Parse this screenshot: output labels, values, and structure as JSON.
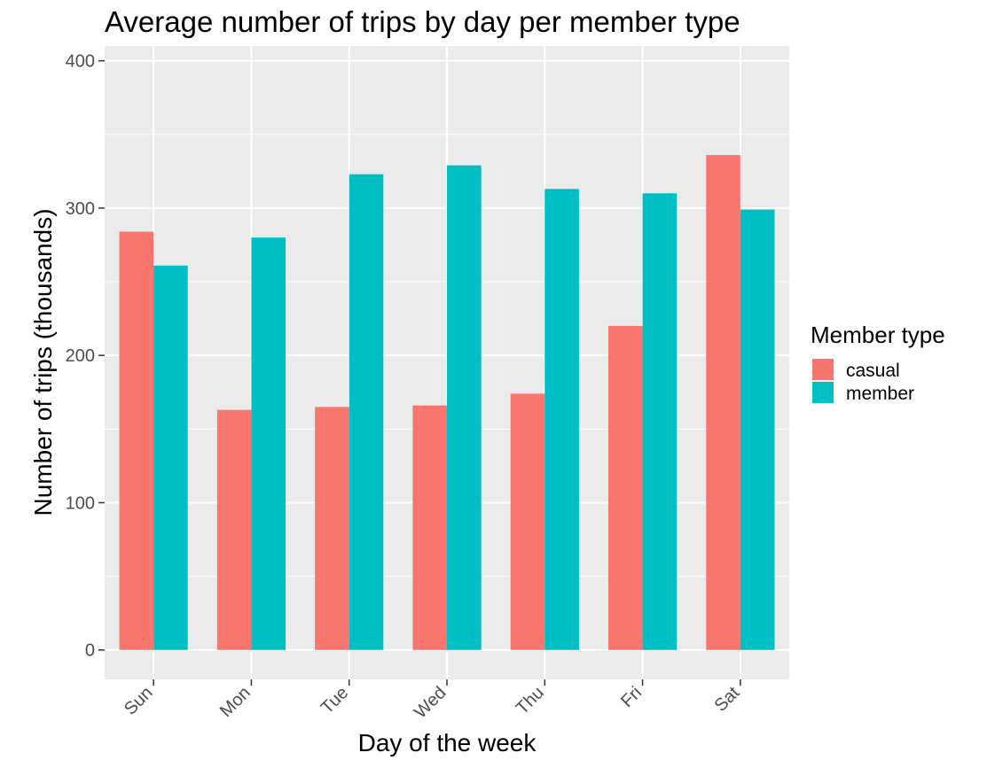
{
  "chart_data": {
    "type": "bar",
    "title": "Average number of trips by day per member type",
    "xlabel": "Day of the week",
    "ylabel": "Number of trips (thousands)",
    "categories": [
      "Sun",
      "Mon",
      "Tue",
      "Wed",
      "Thu",
      "Fri",
      "Sat"
    ],
    "series": [
      {
        "name": "casual",
        "color": "#F8766D",
        "values": [
          284,
          163,
          165,
          166,
          174,
          220,
          336
        ]
      },
      {
        "name": "member",
        "color": "#00BFC4",
        "values": [
          261,
          280,
          323,
          329,
          313,
          310,
          299
        ]
      }
    ],
    "ylim": [
      -20,
      410
    ],
    "yticks": [
      0,
      100,
      200,
      300,
      400
    ],
    "ytick_labels": [
      "0",
      "100",
      "200",
      "300",
      "400"
    ],
    "grid": true,
    "panel_background": "#EBEBEB",
    "legend": {
      "title": "Member type",
      "position": "right"
    }
  }
}
